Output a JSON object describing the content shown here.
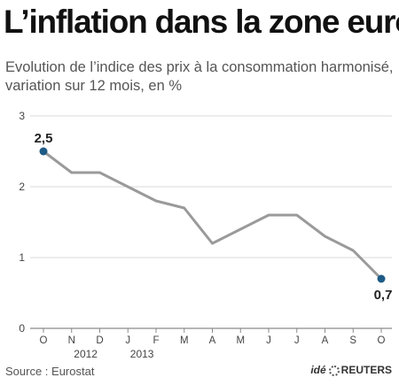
{
  "header": {
    "title": "L’inflation dans la zone euro",
    "subtitle": "Evolution de l’indice des prix à la consommation harmonisé, variation sur 12 mois, en %"
  },
  "footer": {
    "source": "Source : Eurostat",
    "credit_ide": "idé",
    "credit_reuters": "REUTERS"
  },
  "colors": {
    "line": "#9a9a9a",
    "marker": "#1d5b86",
    "grid": "#d9d9d9",
    "axis": "#8a8a8a",
    "text": "#444444"
  },
  "chart_data": {
    "type": "line",
    "categories": [
      "O",
      "N",
      "D",
      "J",
      "F",
      "M",
      "A",
      "M",
      "J",
      "J",
      "A",
      "S",
      "O"
    ],
    "year_labels": [
      {
        "label": "2012",
        "index": 1.5
      },
      {
        "label": "2013",
        "index": 3.5
      }
    ],
    "values": [
      2.5,
      2.2,
      2.2,
      2.0,
      1.8,
      1.7,
      1.2,
      1.4,
      1.6,
      1.6,
      1.3,
      1.1,
      0.7
    ],
    "data_labels": [
      {
        "index": 0,
        "text": "2,5"
      },
      {
        "index": 12,
        "text": "0,7"
      }
    ],
    "yticks": [
      0,
      1,
      2,
      3
    ],
    "ylim": [
      0,
      3
    ],
    "grid": true,
    "title": "",
    "xlabel": "",
    "ylabel": ""
  }
}
